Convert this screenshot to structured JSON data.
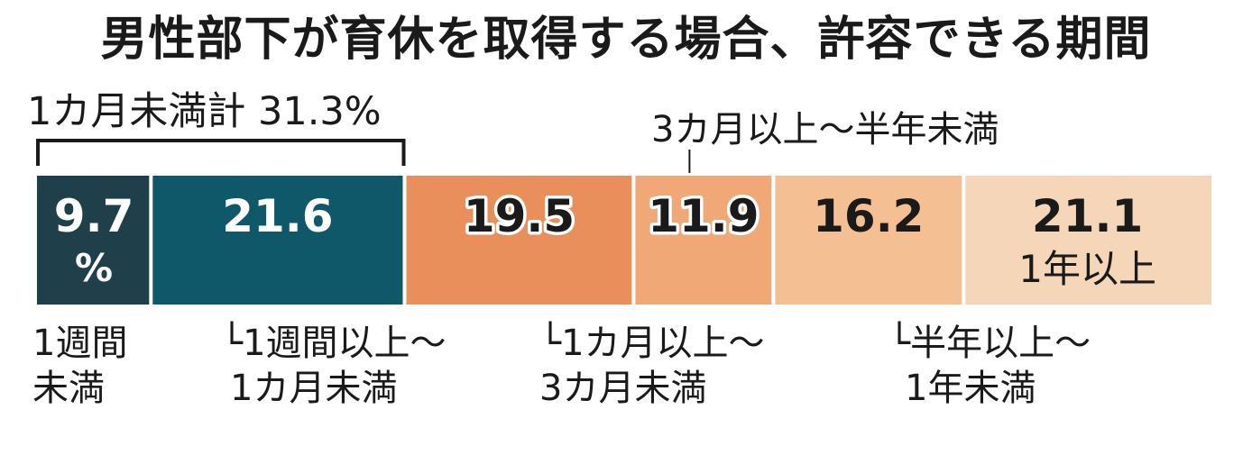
{
  "title": "男性部下が育休を取得する場合、許容できる期間",
  "bracket_label": "1カ月未満計 31.3%",
  "chart_data": {
    "type": "bar",
    "orientation": "horizontal-stacked-100",
    "unit": "%",
    "categories": [
      "1週間未満",
      "1週間以上～1カ月未満",
      "1カ月以上～3カ月未満",
      "3カ月以上～半年未満",
      "半年以上～1年未満",
      "1年以上"
    ],
    "values": [
      9.7,
      21.6,
      19.5,
      11.9,
      16.2,
      21.1
    ],
    "value_labels": [
      "9.7",
      "21.6",
      "19.5",
      "11.9",
      "16.2",
      "21.1"
    ],
    "first_value_suffix": "%",
    "colors": [
      "#1f3f4a",
      "#0f5869",
      "#e88f5c",
      "#f0a877",
      "#f4c093",
      "#f5d6b8"
    ],
    "category_label_lines": [
      [
        "1週間",
        "未満"
      ],
      [
        "└1週間以上～",
        "1カ月未満"
      ],
      [
        "└1カ月以上～",
        "3カ月未満"
      ],
      [
        "3カ月以上～半年未満"
      ],
      [
        "└半年以上～",
        "1年未満"
      ],
      [
        "1年以上"
      ]
    ]
  }
}
